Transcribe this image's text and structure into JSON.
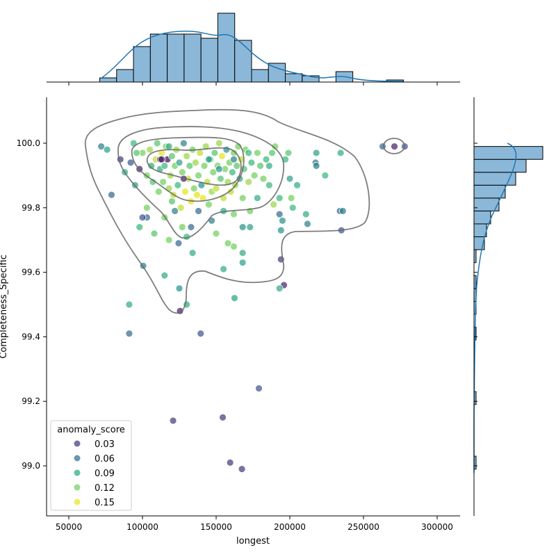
{
  "chart_data": {
    "type": "scatter",
    "subtype": "jointplot with KDE contours and marginal histograms",
    "xlabel": "longest",
    "ylabel": "Completeness_Specific",
    "xlim": [
      35000,
      315000
    ],
    "ylim": [
      98.85,
      100.15
    ],
    "xticks": [
      "50000",
      "100000",
      "150000",
      "200000",
      "250000",
      "300000"
    ],
    "yticks": [
      "99.0",
      "99.2",
      "99.4",
      "99.6",
      "99.8",
      "100.0"
    ],
    "grid": false,
    "legend": {
      "title": "anomaly_score",
      "placement": "lower-left",
      "entries": [
        {
          "label": "0.03",
          "color": "#46307c"
        },
        {
          "label": "0.06",
          "color": "#2f6a8d"
        },
        {
          "label": "0.09",
          "color": "#22a884"
        },
        {
          "label": "0.12",
          "color": "#6ece58"
        },
        {
          "label": "0.15",
          "color": "#e5e419"
        }
      ]
    },
    "hue": "anomaly_score",
    "points": [
      [
        120800,
        99.14,
        0.03
      ],
      [
        154500,
        99.15,
        0.03
      ],
      [
        159500,
        99.01,
        0.03
      ],
      [
        167500,
        98.99,
        0.03
      ],
      [
        179000,
        99.24,
        0.04
      ],
      [
        139500,
        99.41,
        0.04
      ],
      [
        91000,
        99.41,
        0.05
      ],
      [
        91000,
        99.5,
        0.09
      ],
      [
        125500,
        99.48,
        0.02
      ],
      [
        130000,
        99.5,
        0.09
      ],
      [
        125000,
        99.55,
        0.07
      ],
      [
        162500,
        99.52,
        0.08
      ],
      [
        100500,
        99.62,
        0.06
      ],
      [
        115000,
        99.59,
        0.09
      ],
      [
        155000,
        99.61,
        0.09
      ],
      [
        168000,
        99.63,
        0.08
      ],
      [
        196000,
        99.56,
        0.02
      ],
      [
        193000,
        99.55,
        0.09
      ],
      [
        194000,
        99.64,
        0.03
      ],
      [
        79000,
        99.84,
        0.05
      ],
      [
        72000,
        99.99,
        0.06
      ],
      [
        76000,
        99.98,
        0.08
      ],
      [
        263000,
        99.99,
        0.05
      ],
      [
        271000,
        99.99,
        0.02
      ],
      [
        278000,
        99.99,
        0.04
      ],
      [
        234000,
        99.79,
        0.05
      ],
      [
        236000,
        99.79,
        0.06
      ],
      [
        235000,
        99.73,
        0.04
      ],
      [
        234500,
        99.97,
        0.09
      ],
      [
        218000,
        99.97,
        0.08
      ],
      [
        217500,
        99.94,
        0.06
      ],
      [
        218000,
        99.93,
        0.06
      ],
      [
        224000,
        99.9,
        0.1
      ],
      [
        211000,
        99.78,
        0.09
      ],
      [
        212000,
        99.75,
        0.06
      ],
      [
        200000,
        99.89,
        0.08
      ],
      [
        205000,
        99.87,
        0.09
      ],
      [
        201000,
        99.83,
        0.12
      ],
      [
        202000,
        99.8,
        0.1
      ],
      [
        193000,
        99.78,
        0.05
      ],
      [
        194000,
        99.73,
        0.07
      ],
      [
        195000,
        99.76,
        0.07
      ],
      [
        193000,
        99.83,
        0.1
      ],
      [
        186000,
        99.87,
        0.1
      ],
      [
        189000,
        99.81,
        0.13
      ],
      [
        190000,
        99.99,
        0.12
      ],
      [
        199000,
        99.97,
        0.11
      ],
      [
        197000,
        99.95,
        0.1
      ],
      [
        133000,
        99.74,
        0.05
      ],
      [
        134000,
        99.66,
        0.09
      ],
      [
        147000,
        99.76,
        0.06
      ],
      [
        150000,
        99.72,
        0.12
      ],
      [
        158000,
        99.69,
        0.12
      ],
      [
        162000,
        99.68,
        0.12
      ],
      [
        168000,
        99.74,
        0.07
      ],
      [
        173000,
        99.74,
        0.08
      ],
      [
        173000,
        99.79,
        0.12
      ],
      [
        155000,
        99.79,
        0.09
      ],
      [
        162000,
        99.78,
        0.12
      ],
      [
        178000,
        99.83,
        0.09
      ],
      [
        168000,
        99.66,
        0.09
      ],
      [
        98000,
        99.74,
        0.1
      ],
      [
        108000,
        99.72,
        0.11
      ],
      [
        118000,
        99.7,
        0.12
      ],
      [
        120000,
        99.82,
        0.11
      ],
      [
        127000,
        99.74,
        0.12
      ],
      [
        130000,
        99.71,
        0.1
      ],
      [
        115000,
        99.77,
        0.12
      ],
      [
        103000,
        99.8,
        0.12
      ],
      [
        124500,
        99.69,
        0.05
      ],
      [
        103000,
        99.77,
        0.05
      ],
      [
        100000,
        99.77,
        0.04
      ],
      [
        122000,
        99.79,
        0.06
      ],
      [
        85000,
        99.95,
        0.03
      ],
      [
        88000,
        99.91,
        0.09
      ],
      [
        92000,
        99.94,
        0.04
      ],
      [
        94000,
        100.0,
        0.1
      ],
      [
        95000,
        99.87,
        0.08
      ],
      [
        98000,
        99.92,
        0.02
      ],
      [
        100000,
        99.97,
        0.12
      ],
      [
        103000,
        99.9,
        0.12
      ],
      [
        105000,
        99.98,
        0.13
      ],
      [
        106000,
        99.93,
        0.09
      ],
      [
        107000,
        99.88,
        0.11
      ],
      [
        109000,
        99.95,
        0.14
      ],
      [
        110000,
        100.0,
        0.11
      ],
      [
        111000,
        99.85,
        0.12
      ],
      [
        112000,
        99.92,
        0.09
      ],
      [
        113000,
        99.97,
        0.15
      ],
      [
        114000,
        99.88,
        0.12
      ],
      [
        115000,
        99.93,
        0.1
      ],
      [
        116000,
        99.99,
        0.12
      ],
      [
        117000,
        99.95,
        0.01
      ],
      [
        118000,
        99.86,
        0.13
      ],
      [
        119000,
        99.9,
        0.13
      ],
      [
        120000,
        99.96,
        0.11
      ],
      [
        121000,
        99.84,
        0.14
      ],
      [
        122000,
        99.93,
        0.12
      ],
      [
        123000,
        99.98,
        0.13
      ],
      [
        124000,
        99.87,
        0.1
      ],
      [
        125000,
        99.94,
        0.08
      ],
      [
        126000,
        99.8,
        0.14
      ],
      [
        127000,
        99.91,
        0.12
      ],
      [
        128000,
        100.0,
        0.06
      ],
      [
        129000,
        99.85,
        0.15
      ],
      [
        130000,
        99.96,
        0.13
      ],
      [
        131000,
        99.89,
        0.14
      ],
      [
        132000,
        99.93,
        0.11
      ],
      [
        133000,
        99.82,
        0.15
      ],
      [
        134000,
        99.98,
        0.12
      ],
      [
        135000,
        99.86,
        0.12
      ],
      [
        136000,
        99.94,
        0.13
      ],
      [
        137000,
        99.84,
        0.15
      ],
      [
        138000,
        99.9,
        0.12
      ],
      [
        139000,
        99.97,
        0.14
      ],
      [
        140000,
        99.87,
        0.07
      ],
      [
        141000,
        99.83,
        0.15
      ],
      [
        142000,
        99.93,
        0.12
      ],
      [
        143000,
        99.99,
        0.13
      ],
      [
        144000,
        99.88,
        0.14
      ],
      [
        145000,
        99.81,
        0.12
      ],
      [
        146000,
        99.95,
        0.1
      ],
      [
        147000,
        99.85,
        0.13
      ],
      [
        148000,
        99.91,
        0.12
      ],
      [
        149000,
        99.97,
        0.11
      ],
      [
        150000,
        99.86,
        0.14
      ],
      [
        151000,
        99.93,
        0.12
      ],
      [
        152000,
        100.0,
        0.13
      ],
      [
        153000,
        99.89,
        0.11
      ],
      [
        154000,
        99.96,
        0.15
      ],
      [
        155000,
        99.83,
        0.14
      ],
      [
        156000,
        99.92,
        0.12
      ],
      [
        157000,
        99.98,
        0.07
      ],
      [
        158000,
        99.88,
        0.13
      ],
      [
        159000,
        99.94,
        0.12
      ],
      [
        160000,
        99.85,
        0.14
      ],
      [
        161000,
        99.91,
        0.1
      ],
      [
        162000,
        99.97,
        0.12
      ],
      [
        163000,
        99.87,
        0.13
      ],
      [
        164000,
        99.93,
        0.11
      ],
      [
        165000,
        99.99,
        0.12
      ],
      [
        166000,
        99.89,
        0.09
      ],
      [
        167000,
        99.95,
        0.14
      ],
      [
        168000,
        99.83,
        0.12
      ],
      [
        169000,
        99.92,
        0.11
      ],
      [
        170000,
        99.98,
        0.12
      ],
      [
        172000,
        99.88,
        0.13
      ],
      [
        174000,
        99.94,
        0.1
      ],
      [
        176000,
        99.9,
        0.12
      ],
      [
        178000,
        99.97,
        0.12
      ],
      [
        180000,
        99.93,
        0.11
      ],
      [
        182000,
        99.89,
        0.12
      ],
      [
        184000,
        99.95,
        0.1
      ],
      [
        186000,
        99.93,
        0.09
      ],
      [
        188000,
        99.97,
        0.11
      ],
      [
        112000,
        99.95,
        0.02
      ],
      [
        113000,
        99.95,
        0.02
      ],
      [
        128000,
        99.89,
        0.02
      ],
      [
        162000,
        99.95,
        0.06
      ],
      [
        172000,
        99.97,
        0.1
      ],
      [
        138000,
        99.79,
        0.05
      ],
      [
        145000,
        99.95,
        0.08
      ],
      [
        152000,
        99.92,
        0.07
      ],
      [
        118000,
        99.99,
        0.09
      ],
      [
        96000,
        99.97,
        0.11
      ]
    ],
    "marginal_x": {
      "bin_edges": [
        71000,
        82450,
        93900,
        105350,
        116800,
        128250,
        139700,
        151150,
        162600,
        174050,
        185500,
        196950,
        208400,
        219850,
        231300,
        242750,
        254200,
        265650,
        277100
      ],
      "counts": [
        2,
        6,
        17,
        23,
        23,
        23,
        21,
        33,
        20,
        6,
        9,
        4,
        3,
        0,
        5,
        0,
        0,
        1
      ]
    },
    "marginal_y": {
      "bin_edges": [
        98.99,
        99.03,
        99.07,
        99.11,
        99.15,
        99.19,
        99.23,
        99.27,
        99.31,
        99.35,
        99.39,
        99.43,
        99.47,
        99.51,
        99.55,
        99.59,
        99.63,
        99.67,
        99.71,
        99.75,
        99.79,
        99.83,
        99.87,
        99.91,
        99.95,
        99.99,
        100.03
      ],
      "counts": [
        1,
        0,
        0,
        0,
        0,
        1,
        0,
        0,
        0,
        0,
        1,
        0,
        1,
        1,
        1,
        0,
        1,
        5,
        6,
        8,
        12,
        15,
        20,
        25,
        33,
        0
      ]
    }
  }
}
